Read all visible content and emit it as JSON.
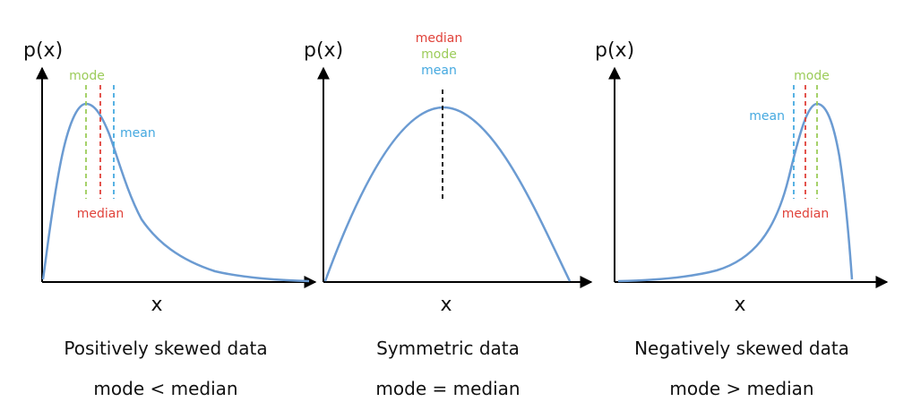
{
  "colors": {
    "curve": "#6b9bd2",
    "axis": "#000000",
    "mode": "#9ccc5a",
    "median": "#e0423a",
    "mean": "#45a9e0",
    "center_line": "#000000"
  },
  "panels": [
    {
      "axis_y_label": "p(x)",
      "axis_x_label": "x",
      "labels": {
        "mode": "mode",
        "median": "median",
        "mean": "mean"
      },
      "caption_title": "Positively skewed data",
      "caption_relation": "mode < median"
    },
    {
      "axis_y_label": "p(x)",
      "axis_x_label": "x",
      "labels": {
        "median": "median",
        "mode": "mode",
        "mean": "mean"
      },
      "caption_title": "Symmetric data",
      "caption_relation": "mode = median"
    },
    {
      "axis_y_label": "p(x)",
      "axis_x_label": "x",
      "labels": {
        "mode": "mode",
        "mean": "mean",
        "median": "median"
      },
      "caption_title": "Negatively skewed data",
      "caption_relation": "mode > median"
    }
  ]
}
